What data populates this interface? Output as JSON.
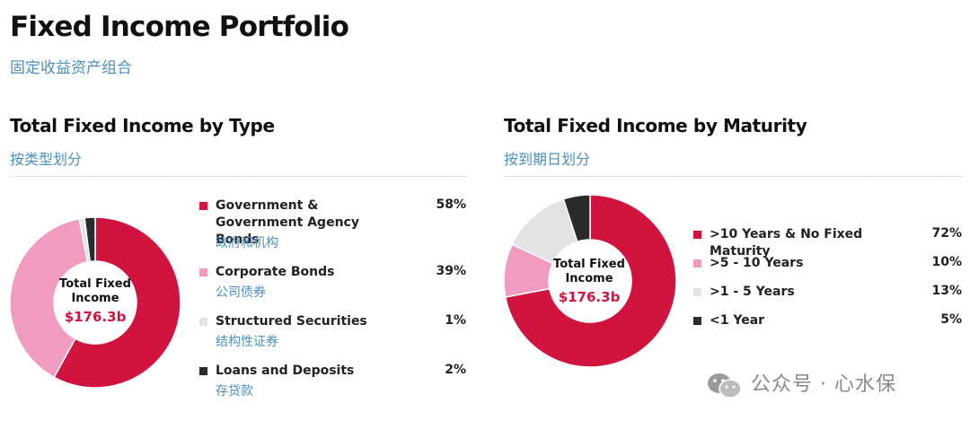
{
  "page": {
    "title": "Fixed Income Portfolio",
    "subtitle": "固定收益资产组合"
  },
  "chart_data": [
    {
      "type": "pie",
      "title": "Total Fixed Income by Type",
      "subtitle": "按类型划分",
      "center_label": "Total Fixed Income",
      "center_value": "$176.3b",
      "series": [
        {
          "name": "Government & Government Agency Bonds",
          "name_cn": "政府和机构",
          "value": 58,
          "value_label": "58%",
          "color": "#d0143f"
        },
        {
          "name": "Corporate Bonds",
          "name_cn": "公司债券",
          "value": 39,
          "value_label": "39%",
          "color": "#f29bc0"
        },
        {
          "name": "Structured Securities",
          "name_cn": "结构性证券",
          "value": 1,
          "value_label": "1%",
          "color": "#e3e3e3"
        },
        {
          "name": "Loans and Deposits",
          "name_cn": "存贷款",
          "value": 2,
          "value_label": "2%",
          "color": "#2b2b2b"
        }
      ]
    },
    {
      "type": "pie",
      "title": "Total Fixed Income by Maturity",
      "subtitle": "按到期日划分",
      "center_label": "Total Fixed Income",
      "center_value": "$176.3b",
      "series": [
        {
          "name": ">10 Years & No Fixed Maturity",
          "value": 72,
          "value_label": "72%",
          "color": "#d0143f"
        },
        {
          "name": ">5 - 10 Years",
          "value": 10,
          "value_label": "10%",
          "color": "#f29bc0"
        },
        {
          "name": ">1 - 5 Years",
          "value": 13,
          "value_label": "13%",
          "color": "#e3e3e3"
        },
        {
          "name": "<1 Year",
          "value": 5,
          "value_label": "5%",
          "color": "#2b2b2b"
        }
      ]
    }
  ],
  "watermark": {
    "text": "公众号 · 心水保",
    "icon": "wechat-icon"
  }
}
